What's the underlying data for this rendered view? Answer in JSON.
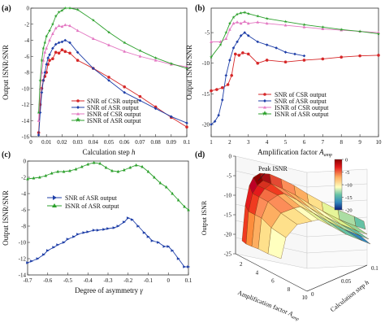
{
  "figure": {
    "background": "#f4f4f4"
  },
  "chart_data": [
    {
      "id": "a",
      "panel_label": "(a)",
      "type": "line",
      "xlabel": "Calculation step h",
      "ylabel": "Output ISNR/SNR",
      "xlim": [
        0,
        0.1
      ],
      "ylim": [
        -16,
        0
      ],
      "xticks": [
        0,
        0.01,
        0.02,
        0.03,
        0.04,
        0.05,
        0.06,
        0.07,
        0.08,
        0.09,
        0.1
      ],
      "xtick_labels": [
        "0",
        "0.01",
        "0.02",
        "0.03",
        "0.04",
        "0.05",
        "0.06",
        "0.07",
        "0.08",
        "0.09",
        "0.1"
      ],
      "yticks": [
        -16,
        -14,
        -12,
        -10,
        -8,
        -6,
        -4,
        -2,
        0
      ],
      "ytick_labels": [
        "-16",
        "-14",
        "-12",
        "-10",
        "-8",
        "-6",
        "-4",
        "-2",
        "0"
      ],
      "grid": false,
      "legend_position": "bottom-left",
      "series": [
        {
          "name": "SNR of CSR output",
          "color": "#d62728",
          "marker": "circle",
          "x": [
            0.005,
            0.006,
            0.007,
            0.008,
            0.009,
            0.01,
            0.011,
            0.012,
            0.014,
            0.016,
            0.018,
            0.02,
            0.022,
            0.025,
            0.03,
            0.04,
            0.05,
            0.06,
            0.07,
            0.08,
            0.09,
            0.1
          ],
          "y": [
            -15.5,
            -12,
            -10,
            -9,
            -8.5,
            -8,
            -7,
            -6.5,
            -6.3,
            -5.5,
            -5.6,
            -5.2,
            -5.4,
            -5.6,
            -6.5,
            -7.5,
            -8.6,
            -9.8,
            -11,
            -12.3,
            -13.6,
            -14.8
          ]
        },
        {
          "name": "SNR of ASR output",
          "color": "#1f3fa8",
          "marker": "diamond",
          "x": [
            0.005,
            0.006,
            0.007,
            0.008,
            0.009,
            0.01,
            0.011,
            0.012,
            0.014,
            0.016,
            0.018,
            0.02,
            0.022,
            0.025,
            0.03,
            0.04,
            0.05,
            0.06,
            0.07,
            0.08,
            0.09,
            0.1
          ],
          "y": [
            -15.8,
            -13,
            -10.5,
            -9,
            -8,
            -7,
            -6.2,
            -5.8,
            -5,
            -4.5,
            -4.3,
            -4.2,
            -4,
            -4.3,
            -5.5,
            -7.5,
            -9,
            -10.5,
            -11.5,
            -12.5,
            -13.5,
            -14.3
          ]
        },
        {
          "name": "ISNR of CSR output",
          "color": "#e377c2",
          "marker": "triangle",
          "x": [
            0.005,
            0.006,
            0.007,
            0.008,
            0.009,
            0.01,
            0.012,
            0.014,
            0.016,
            0.018,
            0.02,
            0.022,
            0.025,
            0.03,
            0.04,
            0.05,
            0.06,
            0.07,
            0.08,
            0.09,
            0.1
          ],
          "y": [
            -14,
            -10,
            -8,
            -6.5,
            -5.5,
            -5,
            -4,
            -3.2,
            -2.5,
            -2.2,
            -2.3,
            -2.1,
            -2.2,
            -2.8,
            -3.8,
            -4.6,
            -5.4,
            -6,
            -6.5,
            -7,
            -7.3
          ]
        },
        {
          "name": "ISNR of ASR output",
          "color": "#2ca02c",
          "marker": "star",
          "x": [
            0.005,
            0.006,
            0.007,
            0.008,
            0.009,
            0.01,
            0.012,
            0.014,
            0.016,
            0.018,
            0.02,
            0.022,
            0.025,
            0.03,
            0.04,
            0.05,
            0.06,
            0.07,
            0.08,
            0.09,
            0.1
          ],
          "y": [
            -13,
            -9,
            -6.5,
            -5,
            -4.3,
            -3.5,
            -2.8,
            -2,
            -1,
            -0.5,
            -0.3,
            0,
            0,
            -0.2,
            -1.5,
            -3,
            -4.3,
            -5.3,
            -6.2,
            -6.9,
            -7.5
          ]
        }
      ]
    },
    {
      "id": "b",
      "panel_label": "(b)",
      "type": "line",
      "xlabel": "Amplification factor A",
      "xlabel_sub": "amp",
      "ylabel": "Output ISNR/SNR",
      "xlim": [
        1,
        10
      ],
      "ylim": [
        -22,
        -1
      ],
      "xticks": [
        1,
        2,
        3,
        4,
        5,
        6,
        7,
        8,
        9,
        10
      ],
      "xtick_labels": [
        "1",
        "2",
        "3",
        "4",
        "5",
        "6",
        "7",
        "8",
        "9",
        "10"
      ],
      "yticks": [
        -20,
        -15,
        -10,
        -5
      ],
      "ytick_labels": [
        "-20",
        "-15",
        "-10",
        "-5"
      ],
      "grid": false,
      "legend_position": "bottom-right",
      "series": [
        {
          "name": "SNR of CSR output",
          "color": "#d62728",
          "marker": "circle",
          "x": [
            1,
            1.3,
            1.6,
            1.9,
            2.1,
            2.3,
            2.5,
            2.7,
            3,
            3.5,
            4,
            5,
            6,
            7,
            8,
            9,
            10
          ],
          "y": [
            -14.5,
            -14.3,
            -14,
            -13.5,
            -12,
            -8.5,
            -8.7,
            -8.3,
            -8.5,
            -10,
            -9.5,
            -9.8,
            -9.5,
            -9.3,
            -9,
            -8.8,
            -8.7
          ]
        },
        {
          "name": "SNR of ASR output",
          "color": "#1f3fa8",
          "marker": "diamond",
          "x": [
            1,
            1.2,
            1.4,
            1.6,
            1.8,
            2,
            2.2,
            2.4,
            2.6,
            2.8,
            3,
            3.5,
            4,
            4.5,
            5,
            5.5,
            6
          ],
          "y": [
            -20,
            -19.5,
            -18.5,
            -16,
            -12,
            -9.5,
            -7.5,
            -6.5,
            -5.5,
            -5,
            -5.5,
            -6.5,
            -7,
            -7.5,
            -8.2,
            -8.5,
            -8.8
          ]
        },
        {
          "name": "ISNR of CSR output",
          "color": "#e377c2",
          "marker": "triangle",
          "x": [
            1,
            1.5,
            1.8,
            2,
            2.2,
            2.4,
            2.6,
            2.8,
            3,
            3.5,
            4,
            5,
            6,
            7,
            8,
            9,
            10
          ],
          "y": [
            -6.5,
            -6.5,
            -6,
            -4.5,
            -3.5,
            -3.3,
            -3.5,
            -3.2,
            -3.5,
            -3.3,
            -3.5,
            -3.8,
            -4.1,
            -4.4,
            -4.6,
            -4.8,
            -5
          ]
        },
        {
          "name": "ISNR of ASR output",
          "color": "#2ca02c",
          "marker": "star",
          "x": [
            1,
            1.5,
            1.8,
            2,
            2.2,
            2.4,
            2.6,
            2.8,
            3,
            3.5,
            4,
            5,
            6,
            7,
            8,
            9,
            10
          ],
          "y": [
            -9,
            -7,
            -5,
            -3.5,
            -2.5,
            -2,
            -1.8,
            -1.7,
            -1.9,
            -2.3,
            -2.7,
            -3.2,
            -3.7,
            -4.1,
            -4.5,
            -4.8,
            -5.2
          ]
        }
      ]
    },
    {
      "id": "c",
      "panel_label": "(c)",
      "type": "line",
      "xlabel": "Degree of asymmetry γ",
      "ylabel": "Output ISNR/SNR",
      "xlim": [
        -0.7,
        0.1
      ],
      "ylim": [
        -14,
        0
      ],
      "xticks": [
        -0.7,
        -0.6,
        -0.5,
        -0.4,
        -0.3,
        -0.2,
        -0.1,
        0,
        0.1
      ],
      "xtick_labels": [
        "-0.7",
        "-0.6",
        "-0.5",
        "-0.4",
        "-0.3",
        "-0.2",
        "-0.1",
        "0",
        "0.1"
      ],
      "yticks": [
        -14,
        -12,
        -10,
        -8,
        -6,
        -4,
        -2,
        0
      ],
      "ytick_labels": [
        "-14",
        "-12",
        "-10",
        "-8",
        "-6",
        "-4",
        "-2",
        "0"
      ],
      "grid": false,
      "legend_position": "middle-left",
      "series": [
        {
          "name": "SNR of ASR output",
          "color": "#1f3fa8",
          "marker": "triangle-right",
          "x": [
            -0.7,
            -0.68,
            -0.65,
            -0.62,
            -0.6,
            -0.57,
            -0.55,
            -0.52,
            -0.5,
            -0.47,
            -0.45,
            -0.42,
            -0.4,
            -0.37,
            -0.35,
            -0.32,
            -0.3,
            -0.27,
            -0.25,
            -0.22,
            -0.2,
            -0.18,
            -0.15,
            -0.12,
            -0.1,
            -0.08,
            -0.05,
            -0.02,
            0,
            0.02,
            0.05,
            0.08,
            0.1
          ],
          "y": [
            -12.5,
            -12.3,
            -12,
            -11.5,
            -11,
            -10.6,
            -10.3,
            -10,
            -9.6,
            -9.3,
            -9,
            -8.8,
            -8.7,
            -8.5,
            -8.5,
            -8.4,
            -8.3,
            -8.2,
            -8,
            -7.5,
            -7,
            -7.2,
            -8,
            -8.8,
            -9.3,
            -9.8,
            -10,
            -10.5,
            -10.5,
            -11,
            -12,
            -13,
            -13
          ]
        },
        {
          "name": "ISNR of ASR output",
          "color": "#2ca02c",
          "marker": "triangle",
          "x": [
            -0.7,
            -0.67,
            -0.64,
            -0.61,
            -0.58,
            -0.55,
            -0.52,
            -0.49,
            -0.46,
            -0.43,
            -0.4,
            -0.37,
            -0.34,
            -0.31,
            -0.28,
            -0.25,
            -0.22,
            -0.19,
            -0.16,
            -0.13,
            -0.1,
            -0.07,
            -0.04,
            -0.01,
            0.02,
            0.05,
            0.08,
            0.1
          ],
          "y": [
            -2.2,
            -2.1,
            -2,
            -1.8,
            -1.5,
            -1.3,
            -1.3,
            -1.2,
            -1,
            -0.7,
            -0.4,
            -0.2,
            -0.3,
            -0.8,
            -1.2,
            -1.3,
            -1.1,
            -0.8,
            -0.5,
            -0.7,
            -1.3,
            -2,
            -2.7,
            -3.2,
            -4,
            -4.8,
            -5.6,
            -6
          ]
        }
      ]
    },
    {
      "id": "d",
      "panel_label": "(d)",
      "type": "surface3d",
      "xlabel": "Amplification factor A",
      "xlabel_sub": "amp",
      "ylabel": "Calculation step h",
      "zlabel": "Output ISNR",
      "annotation": "Peak ISNR",
      "zlim": [
        -25,
        0
      ],
      "zticks": [
        -25,
        -20,
        -15,
        -10,
        -5,
        0
      ],
      "ztick_labels": [
        "-25",
        "-20",
        "-15",
        "-10",
        "-5",
        "0"
      ],
      "xticks": [
        2,
        4,
        6,
        8,
        10
      ],
      "xtick_labels": [
        "2",
        "4",
        "6",
        "8",
        "10"
      ],
      "yticks": [
        0,
        0.05,
        0.1
      ],
      "ytick_labels": [
        "0",
        "0.05",
        "0.1"
      ],
      "colorbar": {
        "min": -20,
        "max": 0,
        "ticks": [
          0,
          -5,
          -10,
          -15,
          -20
        ],
        "tick_labels": [
          "0",
          "-5",
          "-10",
          "-15",
          "-20"
        ]
      }
    }
  ]
}
